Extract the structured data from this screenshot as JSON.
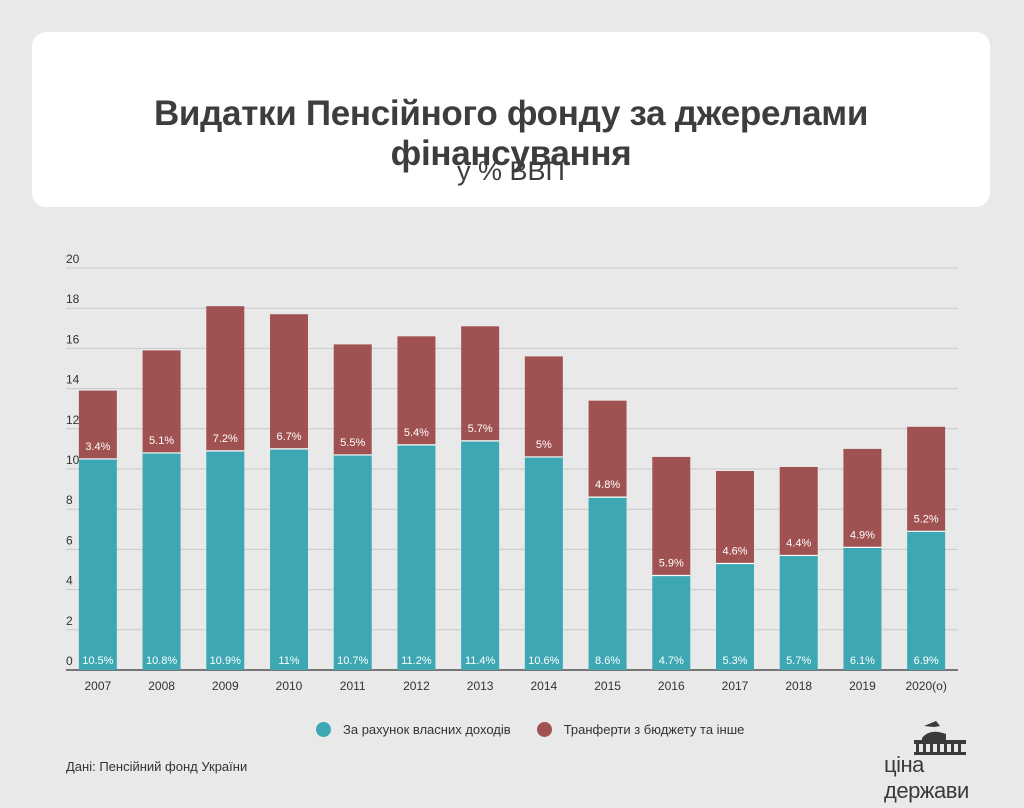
{
  "header": {
    "title": "Видатки Пенсійного фонду за джерелами фінансування",
    "subtitle": "у % ВВП"
  },
  "chart_data": {
    "type": "bar",
    "stacked": true,
    "title": "Видатки Пенсійного фонду за джерелами фінансування",
    "subtitle": "у % ВВП",
    "xlabel": "",
    "ylabel": "",
    "ylim": [
      0,
      20
    ],
    "yticks": [
      "0",
      "2",
      "4",
      "6",
      "8",
      "10",
      "12",
      "14",
      "16",
      "18",
      "20"
    ],
    "grid": true,
    "legend_position": "bottom",
    "categories": [
      "2007",
      "2008",
      "2009",
      "2010",
      "2011",
      "2012",
      "2013",
      "2014",
      "2015",
      "2016",
      "2017",
      "2018",
      "2019",
      "2020(о)"
    ],
    "series": [
      {
        "name": "За рахунок власних доходів",
        "color": "#3da7b4",
        "values": [
          10.5,
          10.8,
          10.9,
          11,
          10.7,
          11.2,
          11.4,
          10.6,
          8.6,
          4.7,
          5.3,
          5.7,
          6.1,
          6.9
        ],
        "labels": [
          "10.5%",
          "10.8%",
          "10.9%",
          "11%",
          "10.7%",
          "11.2%",
          "11.4%",
          "10.6%",
          "8.6%",
          "4.7%",
          "5.3%",
          "5.7%",
          "6.1%",
          "6.9%"
        ]
      },
      {
        "name": "Транферти з бюджету та інше",
        "color": "#a05252",
        "values": [
          3.4,
          5.1,
          7.2,
          6.7,
          5.5,
          5.4,
          5.7,
          5,
          4.8,
          5.9,
          4.6,
          4.4,
          4.9,
          5.2
        ],
        "labels": [
          "3.4%",
          "5.1%",
          "7.2%",
          "6.7%",
          "5.5%",
          "5.4%",
          "5.7%",
          "5%",
          "4.8%",
          "5.9%",
          "4.6%",
          "4.4%",
          "4.9%",
          "5.2%"
        ]
      }
    ]
  },
  "legend": {
    "own_income": "За рахунок власних доходів",
    "transfers": "Транферти з бюджету та інше",
    "own_income_color": "#3da7b4",
    "transfers_color": "#a05252"
  },
  "source": "Дані: Пенсійний фонд України",
  "logo": {
    "text": "ціна держави",
    "icon": "parliament-building-icon"
  }
}
